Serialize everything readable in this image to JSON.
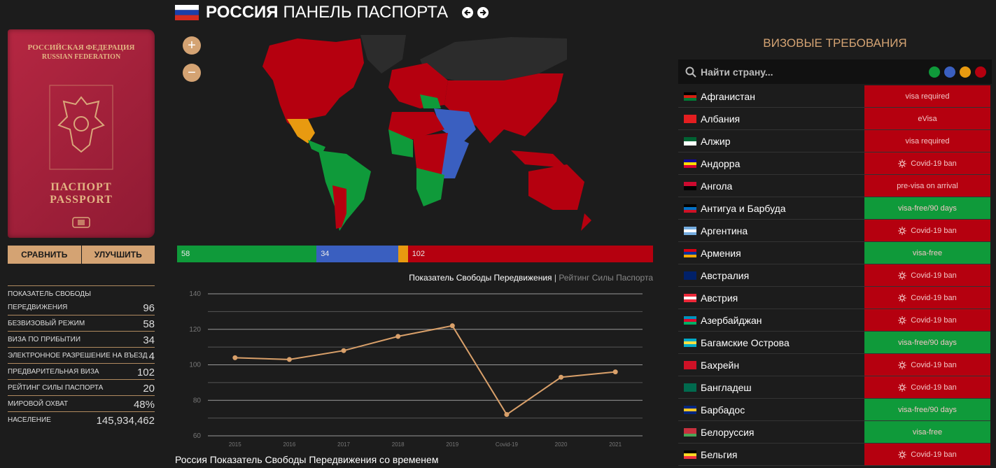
{
  "header": {
    "title_bold": "РОССИЯ",
    "title_rest": "ПАНЕЛЬ ПАСПОРТА"
  },
  "passport": {
    "line1": "РОССИЙСКАЯ ФЕДЕРАЦИЯ",
    "line2": "RUSSIAN FEDERATION",
    "line3": "ПАСПОРТ",
    "line4": "PASSPORT"
  },
  "buttons": [
    "СРАВНИТЬ",
    "УЛУЧШИТЬ"
  ],
  "stats": [
    {
      "label": "ПОКАЗАТЕЛЬ СВОБОДЫ ПЕРЕДВИЖЕНИЯ",
      "value": "96"
    },
    {
      "label": "БЕЗВИЗОВЫЙ РЕЖИМ",
      "value": "58"
    },
    {
      "label": "ВИЗА ПО ПРИБЫТИИ",
      "value": "34"
    },
    {
      "label": "ЭЛЕКТРОННОЕ РАЗРЕШЕНИЕ НА ВЪЕЗД",
      "value": "4"
    },
    {
      "label": "ПРЕДВАРИТЕЛЬНАЯ ВИЗА",
      "value": "102"
    },
    {
      "label": "РЕЙТИНГ СИЛЫ ПАСПОРТА",
      "value": "20"
    },
    {
      "label": "МИРОВОЙ ОХВАТ",
      "value": "48%"
    },
    {
      "label": "НАСЕЛЕНИЕ",
      "value": "145,934,462"
    }
  ],
  "map": {
    "zoom_in": "+",
    "zoom_out": "−"
  },
  "bar": {
    "segments": [
      {
        "value": 58,
        "color": "#0f9a3a"
      },
      {
        "value": 34,
        "color": "#3a5fc0"
      },
      {
        "value": 4,
        "color": "#e89a10",
        "hide_label": true
      },
      {
        "value": 102,
        "color": "#b5000f"
      }
    ]
  },
  "tabs": {
    "active": "Показатель Свободы Передвижения",
    "separator": "|",
    "inactive": "Рейтинг Силы Паспорта"
  },
  "chart_data": {
    "type": "line",
    "title": "Россия Показатель Свободы Передвижения со временем",
    "categories": [
      "2015",
      "2016",
      "2017",
      "2018",
      "2019",
      "Covid-19",
      "2020",
      "2021"
    ],
    "values": [
      104,
      103,
      108,
      116,
      122,
      72,
      93,
      96
    ],
    "color": "#d9a06a",
    "ylim": [
      60,
      140
    ],
    "yticks": [
      60,
      80,
      100,
      120,
      140
    ],
    "minor_yticks": [
      70,
      90,
      110,
      130
    ],
    "grid": true
  },
  "visa": {
    "title": "ВИЗОВЫЕ ТРЕБОВАНИЯ",
    "search_placeholder": "Найти страну...",
    "legend_colors": [
      "#0f9a3a",
      "#3a5fc0",
      "#e89a10",
      "#b5000f"
    ],
    "countries": [
      {
        "name": "Афганистан",
        "status": "visa required",
        "color": "#b5000f",
        "flag": [
          "#000000",
          "#d32011",
          "#007a36"
        ]
      },
      {
        "name": "Албания",
        "status": "eVisa",
        "color": "#b5000f",
        "flag": [
          "#e41e20"
        ]
      },
      {
        "name": "Алжир",
        "status": "visa required",
        "color": "#b5000f",
        "flag": [
          "#006233",
          "#ffffff"
        ]
      },
      {
        "name": "Андорра",
        "status": "Covid-19 ban",
        "color": "#b5000f",
        "covid_icon": true,
        "flag": [
          "#10069f",
          "#fedd00",
          "#d50032"
        ]
      },
      {
        "name": "Ангола",
        "status": "pre-visa on arrival",
        "color": "#b5000f",
        "flag": [
          "#cc092f",
          "#000000"
        ]
      },
      {
        "name": "Антигуа и Барбуда",
        "status": "visa-free/90 days",
        "color": "#0f9a3a",
        "flag": [
          "#000000",
          "#0072c6",
          "#ce1126"
        ]
      },
      {
        "name": "Аргентина",
        "status": "Covid-19 ban",
        "color": "#b5000f",
        "covid_icon": true,
        "flag": [
          "#74acdf",
          "#ffffff",
          "#74acdf"
        ]
      },
      {
        "name": "Армения",
        "status": "visa-free",
        "color": "#0f9a3a",
        "flag": [
          "#d90012",
          "#0033a0",
          "#f2a800"
        ]
      },
      {
        "name": "Австралия",
        "status": "Covid-19 ban",
        "color": "#b5000f",
        "covid_icon": true,
        "flag": [
          "#012169",
          "#012169"
        ]
      },
      {
        "name": "Австрия",
        "status": "Covid-19 ban",
        "color": "#b5000f",
        "covid_icon": true,
        "flag": [
          "#ed2939",
          "#ffffff",
          "#ed2939"
        ]
      },
      {
        "name": "Азербайджан",
        "status": "Covid-19 ban",
        "color": "#b5000f",
        "covid_icon": true,
        "flag": [
          "#0092bc",
          "#e4002b",
          "#00af66"
        ]
      },
      {
        "name": "Багамские Острова",
        "status": "visa-free/90 days",
        "color": "#0f9a3a",
        "flag": [
          "#00abc9",
          "#fae042",
          "#00abc9"
        ]
      },
      {
        "name": "Бахрейн",
        "status": "Covid-19 ban",
        "color": "#b5000f",
        "covid_icon": true,
        "flag": [
          "#ce1126",
          "#ce1126"
        ]
      },
      {
        "name": "Бангладеш",
        "status": "Covid-19 ban",
        "color": "#b5000f",
        "covid_icon": true,
        "flag": [
          "#006a4e",
          "#006a4e"
        ]
      },
      {
        "name": "Барбадос",
        "status": "visa-free/90 days",
        "color": "#0f9a3a",
        "flag": [
          "#00267f",
          "#ffc726",
          "#00267f"
        ]
      },
      {
        "name": "Белоруссия",
        "status": "visa-free",
        "color": "#0f9a3a",
        "flag": [
          "#c8313e",
          "#c8313e",
          "#4aa657"
        ]
      },
      {
        "name": "Бельгия",
        "status": "Covid-19 ban",
        "color": "#b5000f",
        "covid_icon": true,
        "flag": [
          "#000000",
          "#fdda24",
          "#ef3340"
        ]
      }
    ]
  }
}
